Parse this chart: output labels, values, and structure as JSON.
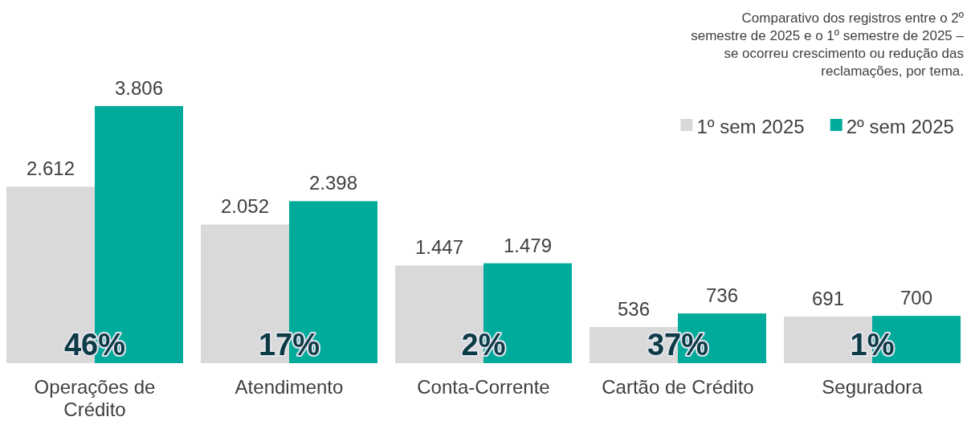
{
  "chart_data": {
    "type": "bar",
    "title": "Comparativo dos registros entre o 2º semestre de 2025 e o 1º semestre de 2025 – se ocorreu crescimento ou redução das reclamações, por tema.",
    "categories": [
      "Operações de Crédito",
      "Atendimento",
      "Conta-Corrente",
      "Cartão de Crédito",
      "Seguradora"
    ],
    "series": [
      {
        "name": "1º sem 2025",
        "color": "#d9d9d9",
        "values": [
          2612,
          2052,
          1447,
          536,
          691
        ],
        "value_labels": [
          "2.612",
          "2.052",
          "1.447",
          "536",
          "691"
        ]
      },
      {
        "name": "2º sem 2025",
        "color": "#00ab9b",
        "values": [
          3806,
          2398,
          1479,
          736,
          700
        ],
        "value_labels": [
          "3.806",
          "2.398",
          "1.479",
          "736",
          "700"
        ]
      }
    ],
    "legend": "top right",
    "annotations": [
      {
        "text": "46%",
        "x": "Operações de Crédito"
      },
      {
        "text": "17%",
        "x": "Atendimento"
      },
      {
        "text": "2%",
        "x": "Conta-Corrente"
      },
      {
        "text": "37%",
        "x": "Cartão de Crédito"
      },
      {
        "text": "1%",
        "x": "Seguradora"
      }
    ]
  }
}
